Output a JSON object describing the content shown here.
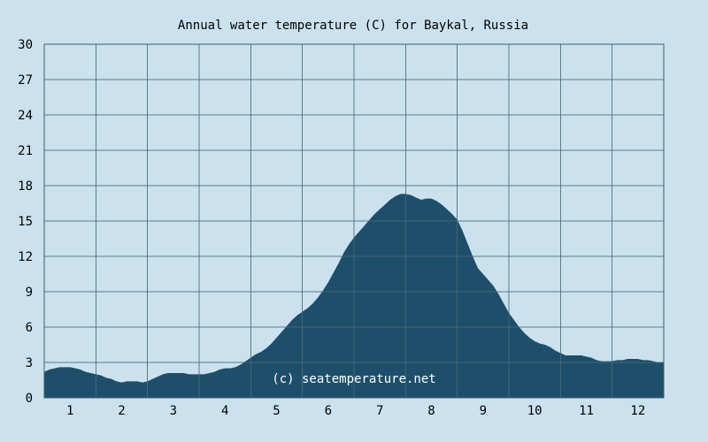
{
  "chart_data": {
    "type": "area",
    "title": "Annual water temperature (C) for Baykal, Russia",
    "xlabel": "",
    "ylabel": "",
    "ylim": [
      0,
      30
    ],
    "xlim": [
      0.5,
      12.5
    ],
    "y_ticks": [
      0,
      3,
      6,
      9,
      12,
      15,
      18,
      21,
      24,
      27,
      30
    ],
    "x_ticks": [
      1,
      2,
      3,
      4,
      5,
      6,
      7,
      8,
      9,
      10,
      11,
      12
    ],
    "grid": true,
    "annotation": "(c) seatemperature.net",
    "series": [
      {
        "x": [
          0.5,
          0.6,
          0.7,
          0.8,
          0.9,
          1.0,
          1.1,
          1.2,
          1.3,
          1.4,
          1.5,
          1.6,
          1.7,
          1.8,
          1.9,
          2.0,
          2.1,
          2.2,
          2.3,
          2.4,
          2.5,
          2.6,
          2.7,
          2.8,
          2.9,
          3.0,
          3.1,
          3.2,
          3.3,
          3.4,
          3.5,
          3.6,
          3.7,
          3.8,
          3.9,
          4.0,
          4.1,
          4.2,
          4.3,
          4.4,
          4.5,
          4.6,
          4.7,
          4.8,
          4.9,
          5.0,
          5.1,
          5.2,
          5.3,
          5.4,
          5.5,
          5.6,
          5.7,
          5.8,
          5.9,
          6.0,
          6.1,
          6.2,
          6.3,
          6.4,
          6.5,
          6.6,
          6.7,
          6.8,
          6.9,
          7.0,
          7.1,
          7.2,
          7.3,
          7.4,
          7.5,
          7.6,
          7.7,
          7.8,
          7.9,
          8.0,
          8.1,
          8.2,
          8.3,
          8.4,
          8.5,
          8.6,
          8.7,
          8.8,
          8.9,
          9.0,
          9.1,
          9.2,
          9.3,
          9.4,
          9.5,
          9.6,
          9.7,
          9.8,
          9.9,
          10.0,
          10.1,
          10.2,
          10.3,
          10.4,
          10.5,
          10.6,
          10.7,
          10.8,
          10.9,
          11.0,
          11.1,
          11.2,
          11.3,
          11.4,
          11.5,
          11.6,
          11.7,
          11.8,
          11.9,
          12.0,
          12.1,
          12.2,
          12.3,
          12.4,
          12.5
        ],
        "values": [
          2.2,
          2.4,
          2.5,
          2.6,
          2.6,
          2.6,
          2.5,
          2.4,
          2.2,
          2.1,
          2.0,
          1.9,
          1.7,
          1.6,
          1.4,
          1.3,
          1.4,
          1.4,
          1.4,
          1.3,
          1.4,
          1.6,
          1.8,
          2.0,
          2.1,
          2.1,
          2.1,
          2.1,
          2.0,
          2.0,
          2.0,
          2.0,
          2.1,
          2.2,
          2.4,
          2.5,
          2.5,
          2.6,
          2.8,
          3.1,
          3.4,
          3.7,
          3.9,
          4.2,
          4.6,
          5.1,
          5.6,
          6.1,
          6.6,
          7.0,
          7.3,
          7.6,
          8.0,
          8.5,
          9.1,
          9.8,
          10.6,
          11.4,
          12.3,
          13.0,
          13.6,
          14.1,
          14.6,
          15.1,
          15.6,
          16.0,
          16.4,
          16.8,
          17.1,
          17.3,
          17.3,
          17.2,
          17.0,
          16.8,
          16.9,
          16.9,
          16.7,
          16.4,
          16.0,
          15.6,
          15.1,
          14.2,
          13.1,
          12.0,
          11.0,
          10.5,
          10.0,
          9.5,
          8.8,
          8.0,
          7.2,
          6.6,
          6.0,
          5.5,
          5.1,
          4.8,
          4.6,
          4.5,
          4.3,
          4.0,
          3.8,
          3.6,
          3.6,
          3.6,
          3.6,
          3.5,
          3.4,
          3.2,
          3.1,
          3.1,
          3.1,
          3.2,
          3.2,
          3.3,
          3.3,
          3.3,
          3.2,
          3.2,
          3.1,
          3.0,
          3.0
        ]
      }
    ],
    "colors": {
      "background": "#cbe2ee",
      "fill": "#1e4f6a",
      "grid": "#4a6878",
      "axis": "#3c5a6a"
    }
  }
}
